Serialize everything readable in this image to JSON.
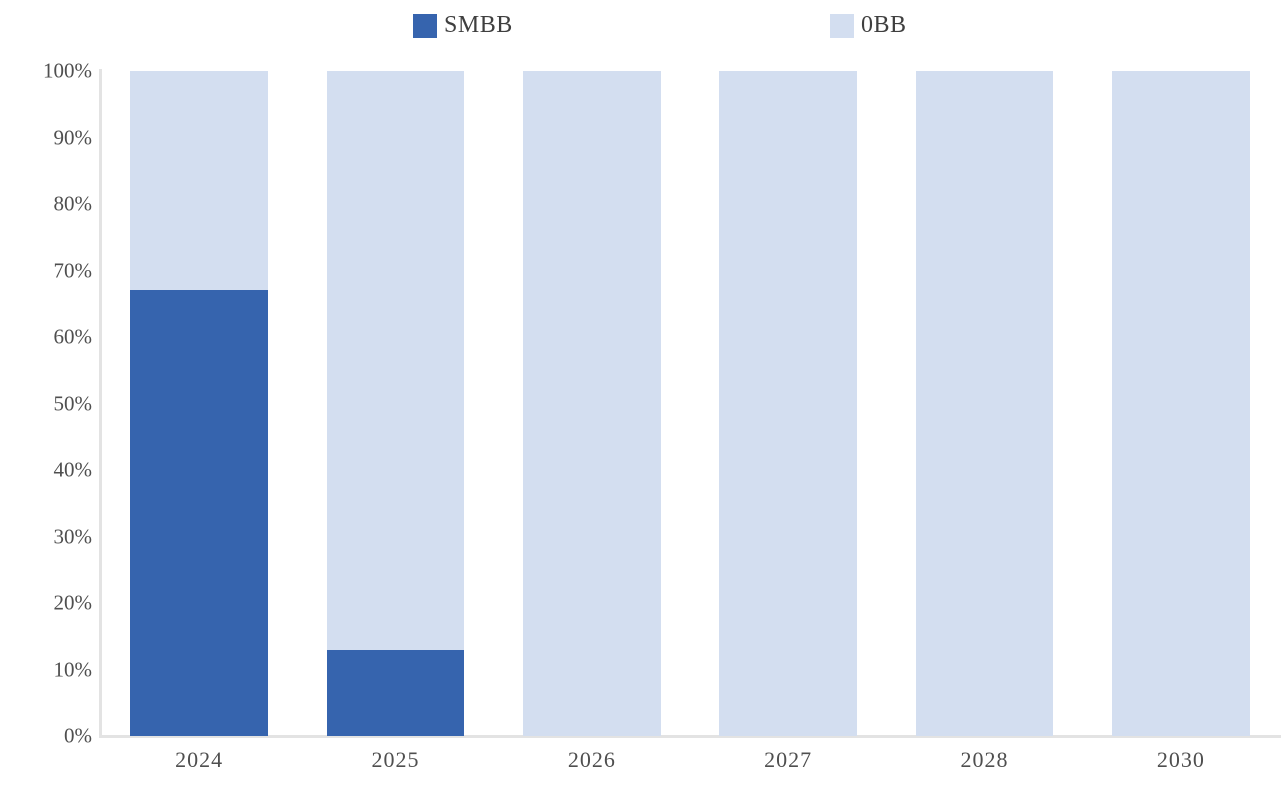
{
  "chart_data": {
    "type": "bar",
    "stacked": true,
    "percent_stacked": true,
    "title": "",
    "xlabel": "",
    "ylabel": "",
    "categories": [
      "2024",
      "2025",
      "2026",
      "2027",
      "2028",
      "2030"
    ],
    "series": [
      {
        "name": "SMBB",
        "color": "#3664AE",
        "values": [
          67,
          13,
          0,
          0,
          0,
          0
        ]
      },
      {
        "name": "0BB",
        "color": "#D3DEF0",
        "values": [
          33,
          87,
          100,
          100,
          100,
          100
        ]
      }
    ],
    "ylim": [
      0,
      100
    ],
    "ytick_step": 10,
    "ytick_suffix": "%",
    "legend_position": "top",
    "grid": false,
    "axis_line_color": "#E3E3E3",
    "tick_label_color": "#4F4F4F",
    "background_color": "#FFFFFF"
  }
}
